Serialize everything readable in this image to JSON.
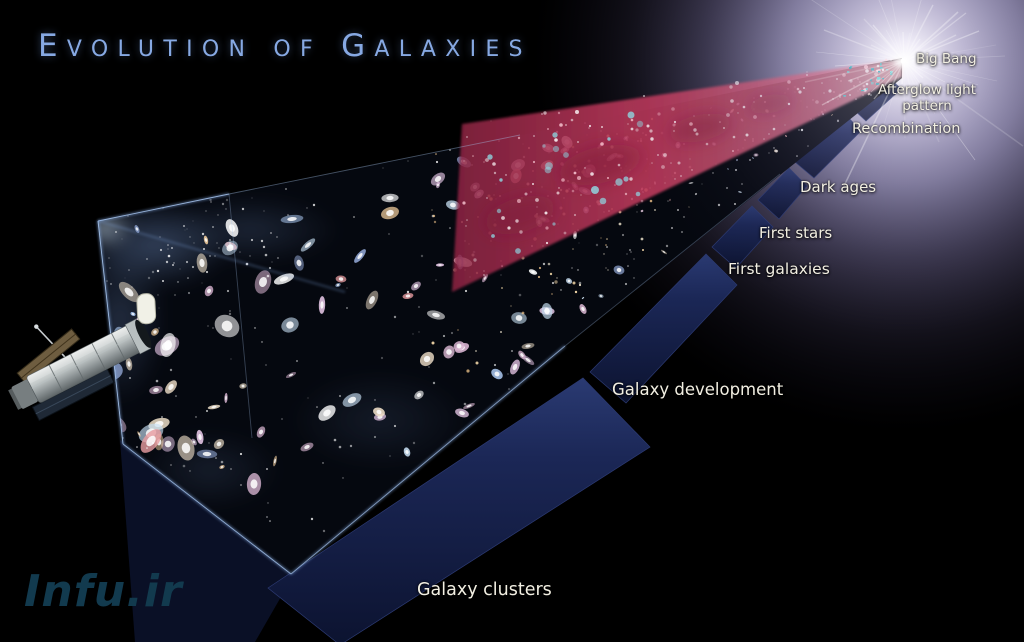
{
  "title": "Evolution of Galaxies",
  "watermark": "Infu.ir",
  "diagram": {
    "type": "cosmic-timeline-cone",
    "stages": [
      {
        "label": "Big Bang"
      },
      {
        "label": "Afterglow light pattern"
      },
      {
        "label": "Recombination"
      },
      {
        "label": "Dark ages"
      },
      {
        "label": "First stars"
      },
      {
        "label": "First galaxies"
      },
      {
        "label": "Galaxy development"
      },
      {
        "label": "Galaxy clusters"
      }
    ]
  },
  "colors": {
    "background": "#000000",
    "title_blue": "#87a9e3",
    "label_cream": "#f2efe2",
    "glow_lavender": "#a9a2c9",
    "cone_red": "#c23b5e",
    "fin_navy": "#1b2756",
    "edge_blue": "#7da0d8",
    "watermark_navy": "#123a4e"
  }
}
